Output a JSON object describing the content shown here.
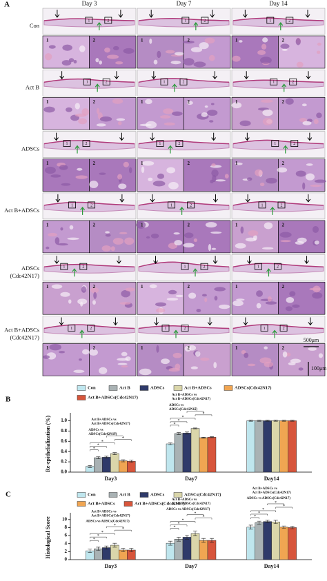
{
  "panel_a": {
    "label": "A",
    "columns": [
      "Day 3",
      "Day 7",
      "Day 14"
    ],
    "rows": [
      [
        "Con"
      ],
      [
        "Act B"
      ],
      [
        "ADSCs"
      ],
      [
        "Act B+ADSCs"
      ],
      [
        "ADSCs",
        "(Cdc42N17)"
      ],
      [
        "Act B+ADSCs",
        "(Cdc42N17)"
      ]
    ],
    "box_labels": [
      "1",
      "2"
    ],
    "scale_bars": [
      "500μm",
      "100μm"
    ]
  },
  "chart_data": [
    {
      "panel_label": "B",
      "type": "bar",
      "y_label": "Re-epithelialization (%)",
      "categories": [
        "Day3",
        "Day7",
        "Day14"
      ],
      "series": [
        {
          "name": "Con",
          "color": "#bfe6ee",
          "values": [
            0.11,
            0.55,
            1.0
          ],
          "errors": [
            0.02,
            0.02,
            0.01
          ]
        },
        {
          "name": "Act B",
          "color": "#a9b2b4",
          "values": [
            0.28,
            0.75,
            1.0
          ],
          "errors": [
            0.02,
            0.02,
            0.01
          ]
        },
        {
          "name": "ADSCs",
          "color": "#2f3a6a",
          "values": [
            0.29,
            0.76,
            1.0
          ],
          "errors": [
            0.02,
            0.02,
            0.01
          ]
        },
        {
          "name": "Act B+ADSCs",
          "color": "#dad6aa",
          "values": [
            0.36,
            0.85,
            1.0
          ],
          "errors": [
            0.02,
            0.01,
            0.01
          ]
        },
        {
          "name": "ADSCs(Cdc42N17)",
          "color": "#f0a552",
          "values": [
            0.22,
            0.67,
            1.0
          ],
          "errors": [
            0.02,
            0.01,
            0.01
          ]
        },
        {
          "name": "Act B+ADSCs(Cdc42N17)",
          "color": "#d7553b",
          "values": [
            0.21,
            0.68,
            1.0
          ],
          "errors": [
            0.02,
            0.01,
            0.01
          ]
        }
      ],
      "ylim": [
        0,
        1.1
      ],
      "yticks": [
        {
          "value": 0,
          "label": "0.0"
        },
        {
          "value": 0.2,
          "label": "0.2"
        },
        {
          "value": 0.4,
          "label": "0.4"
        },
        {
          "value": 0.6,
          "label": "0.6"
        },
        {
          "value": 0.8,
          "label": "0.8"
        },
        {
          "value": 1,
          "label": "1.0"
        }
      ],
      "annotations": [
        "*",
        "Act B+ADSCs vs",
        "Act B+ADSCs(Cdc42N17)",
        "ADSCs vs",
        "ADSCs(Cdc42N17)"
      ]
    },
    {
      "panel_label": "C",
      "type": "bar",
      "y_label": "Histological Score",
      "categories": [
        "Day3",
        "Day7",
        "Day14"
      ],
      "series": [
        {
          "name": "Con",
          "color": "#bfe6ee",
          "values": [
            2.2,
            4.1,
            8.1
          ],
          "errors": [
            0.4,
            0.5,
            0.5
          ]
        },
        {
          "name": "Act B",
          "color": "#a9b2b4",
          "values": [
            2.7,
            5.1,
            9.2
          ],
          "errors": [
            0.4,
            0.5,
            0.4
          ]
        },
        {
          "name": "ADSCs",
          "color": "#2f3a6a",
          "values": [
            3.0,
            5.6,
            9.5
          ],
          "errors": [
            0.4,
            0.5,
            0.3
          ]
        },
        {
          "name": "ADSCs(Cdc42N17)",
          "color": "#dad6aa",
          "values": [
            3.6,
            6.5,
            9.4
          ],
          "errors": [
            0.5,
            0.6,
            0.4
          ]
        },
        {
          "name": "Act B+ADSCs",
          "color": "#f0a552",
          "values": [
            2.4,
            4.8,
            8.1
          ],
          "errors": [
            0.4,
            0.5,
            0.3
          ]
        },
        {
          "name": "Act B+ADSCs(Cdc42N17)",
          "color": "#d7553b",
          "values": [
            2.4,
            4.8,
            8.0
          ],
          "errors": [
            0.4,
            0.5,
            0.3
          ]
        }
      ],
      "ylim": [
        0,
        11
      ],
      "yticks": [
        0,
        2,
        4,
        6,
        8,
        10
      ],
      "annotations": [
        "*",
        "Act B+ADSCs vs",
        "Act B+ADSCs(Cdc42N17)",
        "ADSCs vs ADSCs(Cdc42N17)"
      ]
    }
  ]
}
